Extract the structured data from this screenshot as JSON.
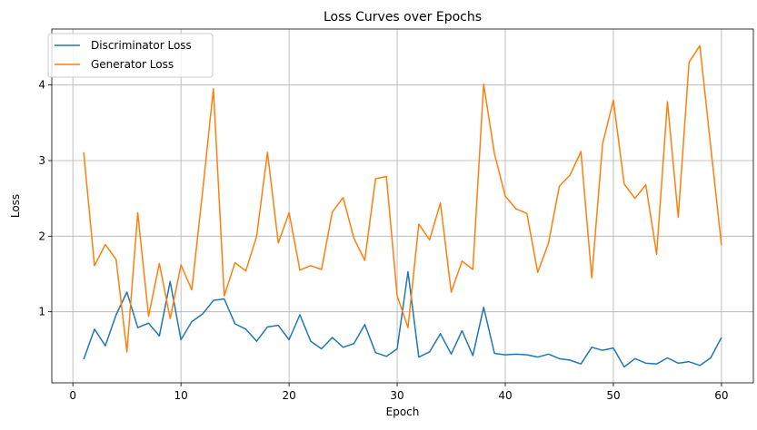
{
  "chart_data": {
    "type": "line",
    "title": "Loss Curves over Epochs",
    "xlabel": "Epoch",
    "ylabel": "Loss",
    "xlim": [
      -1.95,
      62.95
    ],
    "ylim": [
      0.06,
      4.74
    ],
    "xticks": [
      0,
      10,
      20,
      30,
      40,
      50,
      60
    ],
    "yticks": [
      1,
      2,
      3,
      4
    ],
    "grid": true,
    "legend_position": "top-left",
    "x": [
      1,
      2,
      3,
      4,
      5,
      6,
      7,
      8,
      9,
      10,
      11,
      12,
      13,
      14,
      15,
      16,
      17,
      18,
      19,
      20,
      21,
      22,
      23,
      24,
      25,
      26,
      27,
      28,
      29,
      30,
      31,
      32,
      33,
      34,
      35,
      36,
      37,
      38,
      39,
      40,
      41,
      42,
      43,
      44,
      45,
      46,
      47,
      48,
      49,
      50,
      51,
      52,
      53,
      54,
      55,
      56,
      57,
      58,
      59,
      60
    ],
    "series": [
      {
        "name": "Discriminator Loss",
        "color": "#1f77b4",
        "values": [
          0.37,
          0.77,
          0.55,
          0.96,
          1.26,
          0.79,
          0.85,
          0.68,
          1.4,
          0.63,
          0.87,
          0.97,
          1.15,
          1.17,
          0.84,
          0.77,
          0.61,
          0.8,
          0.82,
          0.63,
          0.96,
          0.61,
          0.51,
          0.66,
          0.53,
          0.58,
          0.83,
          0.46,
          0.41,
          0.51,
          1.53,
          0.4,
          0.47,
          0.71,
          0.44,
          0.75,
          0.42,
          1.06,
          0.45,
          0.43,
          0.44,
          0.43,
          0.4,
          0.44,
          0.38,
          0.36,
          0.31,
          0.53,
          0.49,
          0.52,
          0.27,
          0.38,
          0.32,
          0.31,
          0.39,
          0.32,
          0.34,
          0.29,
          0.39,
          0.66
        ]
      },
      {
        "name": "Generator Loss",
        "color": "#ff7f0e",
        "values": [
          3.11,
          1.61,
          1.89,
          1.69,
          0.47,
          2.31,
          0.94,
          1.64,
          0.91,
          1.62,
          1.29,
          2.59,
          3.95,
          1.21,
          1.65,
          1.54,
          2.0,
          3.11,
          1.91,
          2.31,
          1.55,
          1.61,
          1.56,
          2.32,
          2.51,
          1.97,
          1.68,
          2.76,
          2.79,
          1.21,
          0.79,
          2.16,
          1.95,
          2.44,
          1.26,
          1.67,
          1.56,
          4.01,
          3.09,
          2.53,
          2.36,
          2.3,
          1.52,
          1.91,
          2.66,
          2.81,
          3.12,
          1.45,
          3.22,
          3.8,
          2.69,
          2.5,
          2.68,
          1.76,
          3.78,
          2.25,
          4.3,
          4.52,
          3.19,
          1.88
        ]
      }
    ]
  }
}
